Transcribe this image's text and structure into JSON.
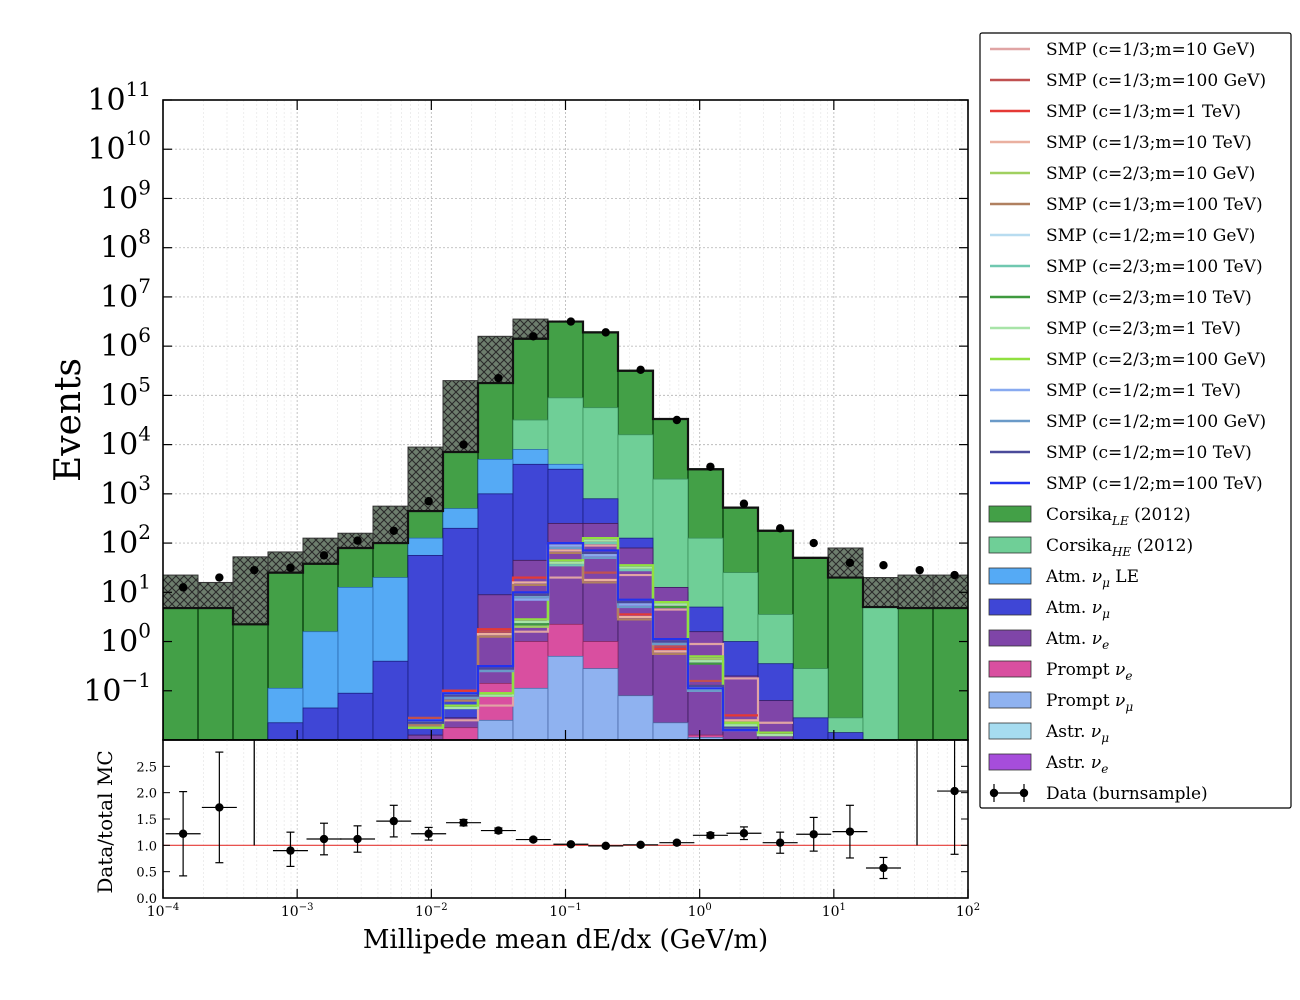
{
  "chart_data": [
    {
      "type": "area",
      "panel": "main",
      "ylabel": "Events",
      "xscale": "log",
      "yscale": "log",
      "xlim": [
        0.0001,
        100
      ],
      "ylim": [
        0.01,
        100000000000
      ],
      "grid": true,
      "legend_placement": "outside-right",
      "bin_edges_log10": [
        -4,
        -3.8,
        -3.6,
        -3.4,
        -3.2,
        -3,
        -2.8,
        -2.6,
        -2.4,
        -2.2,
        -2,
        -1.8,
        -1.6,
        -1.4,
        -1.2,
        -1,
        -0.8,
        -0.6,
        -0.4,
        -0.2,
        0,
        0.2,
        0.4,
        0.6,
        0.8,
        1,
        1.2,
        1.4,
        1.6,
        1.8,
        2
      ],
      "y_tick_labels": [
        {
          "exp": 11,
          "base": "10",
          "sign": ""
        },
        {
          "exp": 10,
          "base": "10",
          "sign": ""
        },
        {
          "exp": 9,
          "base": "10",
          "sign": ""
        },
        {
          "exp": 8,
          "base": "10",
          "sign": ""
        },
        {
          "exp": 7,
          "base": "10",
          "sign": ""
        },
        {
          "exp": 6,
          "base": "10",
          "sign": ""
        },
        {
          "exp": 5,
          "base": "10",
          "sign": ""
        },
        {
          "exp": 4,
          "base": "10",
          "sign": ""
        },
        {
          "exp": 3,
          "base": "10",
          "sign": ""
        },
        {
          "exp": 2,
          "base": "10",
          "sign": ""
        },
        {
          "exp": 1,
          "base": "10",
          "sign": ""
        },
        {
          "exp": 0,
          "base": "10",
          "sign": ""
        },
        {
          "exp": -1,
          "base": "10",
          "sign": "−1"
        }
      ],
      "stacked_series": [
        {
          "name": "Corsika",
          "sub": "LE",
          "suffix": " (2012)",
          "color": "#43a047",
          "edge": "#1b5e20",
          "log10_values": [
            0.68,
            0.68,
            0.35,
            1.4,
            1.58,
            1.9,
            2.0,
            2.65,
            3.85,
            5.25,
            6.15,
            6.5,
            6.28,
            5.5,
            4.52,
            3.5,
            2.72,
            2.25,
            1.7,
            1.3,
            0.7,
            0.68,
            0.68
          ]
        },
        {
          "name": "Corsika",
          "sub": "HE",
          "suffix": " (2012)",
          "color": "#6fcf97",
          "edge": "#3a8f5c",
          "log10_values": [
            null,
            null,
            null,
            null,
            -0.55,
            0.2,
            0.45,
            1.0,
            1.5,
            2.45,
            4.5,
            4.95,
            4.75,
            4.2,
            3.3,
            2.1,
            1.4,
            0.55,
            -0.55,
            -1.55,
            0.7,
            null,
            null
          ]
        },
        {
          "name": "Atm. ν_μ LE",
          "color": "#55aaf5",
          "edge": "#2a6ab0",
          "log10_values": [
            null,
            null,
            null,
            -0.95,
            0.2,
            1.1,
            1.3,
            2.1,
            2.7,
            3.7,
            3.9,
            3.6,
            2.2,
            0.7,
            -0.1,
            -0.8,
            -1.6,
            -1.9,
            null,
            null,
            null,
            null,
            null
          ]
        },
        {
          "name": "Atm. ν_μ",
          "color": "#3f46d6",
          "edge": "#1a1f80",
          "log10_values": [
            null,
            null,
            null,
            -1.65,
            -1.35,
            -1.05,
            -0.4,
            1.75,
            2.3,
            3.0,
            3.6,
            3.5,
            2.9,
            2.1,
            1.0,
            0.7,
            0.0,
            -0.45,
            -1.55,
            -1.85,
            null,
            null,
            null
          ]
        },
        {
          "name": "Atm. ν_e",
          "color": "#7f45a8",
          "edge": "#3a1a5a",
          "log10_values": [
            null,
            null,
            null,
            null,
            null,
            null,
            null,
            -1.9,
            -1.55,
            0.95,
            1.65,
            2.4,
            2.4,
            1.9,
            1.1,
            0.2,
            -0.7,
            -1.2,
            null,
            null,
            null,
            null,
            null
          ]
        },
        {
          "name": "Prompt ν_e",
          "color": "#d94fa0",
          "edge": "#8a2a60",
          "log10_values": [
            null,
            null,
            null,
            null,
            null,
            null,
            null,
            null,
            -1.75,
            -0.85,
            0.0,
            0.35,
            0.0,
            -1.1,
            -1.65,
            -1.9,
            null,
            null,
            null,
            null,
            null,
            null,
            null
          ]
        },
        {
          "name": "Prompt ν_μ",
          "color": "#8fb2f0",
          "edge": "#4a6aa8",
          "log10_values": [
            null,
            null,
            null,
            null,
            null,
            null,
            null,
            null,
            null,
            -1.6,
            -0.95,
            -0.3,
            -0.55,
            -1.1,
            -1.65,
            -1.95,
            null,
            null,
            null,
            null,
            null,
            null,
            null
          ]
        }
      ],
      "smp_lines": [
        {
          "name": "SMP (c=1/3;m=10 GeV)",
          "color": "#e0a4a4",
          "log10_values": [
            -1.6,
            -1.6,
            -1.3,
            0.2,
            1.3,
            1.95,
            1.35,
            0.65,
            -0.05,
            -0.75,
            -1.65,
            null,
            null
          ]
        },
        {
          "name": "SMP (c=1/3;m=100 GeV)",
          "color": "#c05050",
          "log10_values": [
            -1.55,
            -1.0,
            0.2,
            1.3,
            2.0,
            1.4,
            0.55,
            -0.1,
            -0.8,
            -1.6,
            null,
            null,
            null
          ]
        },
        {
          "name": "SMP (c=1/3;m=1 TeV)",
          "color": "#e53935",
          "log10_values": [
            -1.65,
            -1.0,
            0.25,
            1.3,
            1.9,
            1.25,
            0.55,
            -0.15,
            -0.9,
            -1.5,
            null,
            null,
            null
          ]
        },
        {
          "name": "SMP (c=1/3;m=10 TeV)",
          "color": "#eab0a0",
          "log10_values": [
            -1.65,
            -1.1,
            0.15,
            1.2,
            1.85,
            1.25,
            0.5,
            -0.2,
            -0.95,
            -1.6,
            null,
            null,
            null
          ]
        },
        {
          "name": "SMP (c=2/3;m=10 GeV)",
          "color": "#a0d060",
          "log10_values": [
            -1.75,
            -1.3,
            -1.05,
            0.3,
            1.6,
            2.0,
            1.5,
            0.8,
            -0.35,
            -1.7,
            -1.9,
            null,
            null
          ]
        },
        {
          "name": "SMP (c=1/3;m=100 TeV)",
          "color": "#b08060",
          "log10_values": [
            -1.7,
            -1.2,
            0.1,
            1.15,
            1.8,
            1.2,
            0.45,
            -0.25,
            -1.0,
            -1.65,
            null,
            null,
            null
          ]
        },
        {
          "name": "SMP (c=1/2;m=10 GeV)",
          "color": "#b8dcf0",
          "log10_values": [
            -1.6,
            -1.05,
            -0.55,
            0.9,
            1.95,
            1.75,
            0.8,
            0.0,
            -0.95,
            -1.75,
            null,
            null,
            null
          ]
        },
        {
          "name": "SMP (c=2/3;m=100 TeV)",
          "color": "#70c8b0",
          "log10_values": [
            -1.75,
            -1.35,
            -1.1,
            0.35,
            1.55,
            2.0,
            1.45,
            0.8,
            -0.4,
            -1.65,
            -1.9,
            null,
            null
          ]
        },
        {
          "name": "SMP (c=2/3;m=10 TeV)",
          "color": "#3f9a3f",
          "log10_values": [
            -1.75,
            -1.35,
            -1.1,
            0.35,
            1.6,
            2.05,
            1.5,
            0.7,
            -0.45,
            -1.7,
            -1.9,
            null,
            null
          ]
        },
        {
          "name": "SMP (c=2/3;m=1 TeV)",
          "color": "#a8e4a8",
          "log10_values": [
            -1.75,
            -1.35,
            -1.1,
            0.4,
            1.6,
            2.05,
            1.5,
            0.75,
            -0.4,
            -1.7,
            -1.9,
            null,
            null
          ]
        },
        {
          "name": "SMP (c=2/3;m=100 GeV)",
          "color": "#90e040",
          "log10_values": [
            -1.75,
            -1.3,
            -1.05,
            0.45,
            1.65,
            2.1,
            1.55,
            0.8,
            -0.3,
            -1.65,
            -1.85,
            null,
            null
          ]
        },
        {
          "name": "SMP (c=1/2;m=1 TeV)",
          "color": "#88aaf0",
          "log10_values": [
            -1.65,
            -1.1,
            -0.6,
            0.85,
            1.95,
            1.75,
            0.75,
            -0.05,
            -1.0,
            -1.8,
            null,
            null,
            null
          ]
        },
        {
          "name": "SMP (c=1/2;m=100 GeV)",
          "color": "#6a9ac8",
          "log10_values": [
            -1.65,
            -1.15,
            -0.6,
            0.9,
            1.9,
            1.7,
            0.7,
            -0.05,
            -1.0,
            -1.75,
            null,
            null,
            null
          ]
        },
        {
          "name": "SMP (c=1/2;m=10 TeV)",
          "color": "#4a4a9a",
          "log10_values": [
            -1.65,
            -1.1,
            -0.55,
            0.95,
            2.0,
            1.8,
            0.8,
            0.0,
            -0.9,
            -1.75,
            null,
            null,
            null
          ]
        },
        {
          "name": "SMP (c=1/2;m=100 TeV)",
          "color": "#2233ee",
          "log10_values": [
            -1.6,
            -1.05,
            -0.5,
            1.0,
            2.0,
            1.85,
            0.85,
            0.05,
            -0.95,
            -1.8,
            null,
            null,
            null
          ]
        }
      ],
      "smp_start_bin": 7,
      "mc_uncertainty_upper_log10": [
        1.35,
        1.2,
        1.72,
        1.82,
        2.1,
        2.2,
        2.75,
        3.95,
        5.3,
        6.2,
        6.55,
        6.33,
        5.55,
        4.57,
        3.55,
        2.8,
        2.35,
        1.82,
        1.45,
        1.9,
        1.3,
        1.35,
        1.35
      ],
      "mc_uncertainty_lower_log10": [
        0.35,
        0.35,
        0.0,
        1.2,
        1.42,
        1.75,
        1.9,
        2.55,
        3.75,
        5.15,
        6.05,
        6.4,
        6.2,
        5.45,
        4.47,
        3.45,
        2.62,
        2.12,
        1.5,
        1.15,
        0.4,
        0.35,
        0.35
      ],
      "data_points": {
        "name": "Data (burnsample)",
        "x_log10": [
          -3.85,
          -3.58,
          -3.32,
          -3.05,
          -2.8,
          -2.55,
          -2.28,
          -2.02,
          -1.76,
          -1.5,
          -1.24,
          -0.96,
          -0.7,
          -0.44,
          -0.17,
          0.08,
          0.33,
          0.6,
          0.85,
          1.12,
          1.37,
          1.64,
          1.9
        ],
        "y_log10": [
          1.1,
          1.3,
          1.45,
          1.5,
          1.75,
          2.05,
          2.25,
          2.85,
          4.0,
          5.35,
          6.2,
          6.5,
          6.28,
          5.52,
          4.5,
          3.55,
          2.8,
          2.3,
          2.0,
          1.6,
          1.55,
          1.45,
          1.35
        ]
      }
    },
    {
      "type": "scatter",
      "panel": "ratio",
      "xlabel": "Millipede mean dE/dx (GeV/m)",
      "ylabel": "Data/total MC",
      "xscale": "log",
      "xlim": [
        0.0001,
        100
      ],
      "ylim": [
        0.0,
        3.0
      ],
      "reference_line": 1.0,
      "y_tick_labels": [
        "0.0",
        "0.5",
        "1.0",
        "1.5",
        "2.0",
        "2.5"
      ],
      "x_tick_labels": [
        {
          "exp": "−4",
          "base": "10"
        },
        {
          "exp": "−3",
          "base": "10"
        },
        {
          "exp": "−2",
          "base": "10"
        },
        {
          "exp": "−1",
          "base": "10"
        },
        {
          "exp": "0",
          "base": "10"
        },
        {
          "exp": "1",
          "base": "10"
        },
        {
          "exp": "2",
          "base": "10"
        }
      ],
      "x_log10": [
        -3.85,
        -3.58,
        -3.05,
        -2.8,
        -2.55,
        -2.28,
        -2.02,
        -1.76,
        -1.5,
        -1.24,
        -0.96,
        -0.7,
        -0.44,
        -0.17,
        0.08,
        0.33,
        0.6,
        0.85,
        1.12,
        1.37,
        1.64,
        1.9
      ],
      "values": [
        1.22,
        1.72,
        0.9,
        1.12,
        1.12,
        1.46,
        1.22,
        1.43,
        1.28,
        1.11,
        1.02,
        0.99,
        1.01,
        1.05,
        1.19,
        1.23,
        1.05,
        1.21,
        1.26,
        0.57,
        null,
        2.03
      ],
      "err_low": [
        0.8,
        1.05,
        0.3,
        0.3,
        0.25,
        0.3,
        0.12,
        0.06,
        0.05,
        0.03,
        0.02,
        0.02,
        0.02,
        0.03,
        0.05,
        0.12,
        0.2,
        0.32,
        0.5,
        0.2,
        null,
        1.2
      ],
      "err_high": [
        0.8,
        1.05,
        0.35,
        0.3,
        0.25,
        0.3,
        0.12,
        0.06,
        0.05,
        0.03,
        0.02,
        0.02,
        0.02,
        0.03,
        0.05,
        0.12,
        0.2,
        0.32,
        0.5,
        0.2,
        null,
        1.2
      ],
      "vertical_bars": [
        -3.32,
        1.62
      ]
    }
  ],
  "legend": {
    "entries": [
      {
        "kind": "line",
        "label": "SMP (c=1/3;m=10 GeV)",
        "color": "#e0a4a4"
      },
      {
        "kind": "line",
        "label": "SMP (c=1/3;m=100 GeV)",
        "color": "#c05050"
      },
      {
        "kind": "line",
        "label": "SMP (c=1/3;m=1 TeV)",
        "color": "#e53935"
      },
      {
        "kind": "line",
        "label": "SMP (c=1/3;m=10 TeV)",
        "color": "#eab0a0"
      },
      {
        "kind": "line",
        "label": "SMP (c=2/3;m=10 GeV)",
        "color": "#a0d060"
      },
      {
        "kind": "line",
        "label": "SMP (c=1/3;m=100 TeV)",
        "color": "#b08060"
      },
      {
        "kind": "line",
        "label": "SMP (c=1/2;m=10 GeV)",
        "color": "#b8dcf0"
      },
      {
        "kind": "line",
        "label": "SMP (c=2/3;m=100 TeV)",
        "color": "#70c8b0"
      },
      {
        "kind": "line",
        "label": "SMP (c=2/3;m=10 TeV)",
        "color": "#3f9a3f"
      },
      {
        "kind": "line",
        "label": "SMP (c=2/3;m=1 TeV)",
        "color": "#a8e4a8"
      },
      {
        "kind": "line",
        "label": "SMP (c=2/3;m=100 GeV)",
        "color": "#90e040"
      },
      {
        "kind": "line",
        "label": "SMP (c=1/2;m=1 TeV)",
        "color": "#88aaf0"
      },
      {
        "kind": "line",
        "label": "SMP (c=1/2;m=100 GeV)",
        "color": "#6a9ac8"
      },
      {
        "kind": "line",
        "label": "SMP (c=1/2;m=10 TeV)",
        "color": "#4a4a9a"
      },
      {
        "kind": "line",
        "label": "SMP (c=1/2;m=100 TeV)",
        "color": "#2233ee"
      },
      {
        "kind": "patch",
        "label": "Corsika",
        "sub": "LE",
        "suffix": " (2012)",
        "color": "#43a047"
      },
      {
        "kind": "patch",
        "label": "Corsika",
        "sub": "HE",
        "suffix": " (2012)",
        "color": "#6fcf97"
      },
      {
        "kind": "patch",
        "label": "Atm. ",
        "nu": "μ",
        "suffix": " LE",
        "color": "#55aaf5"
      },
      {
        "kind": "patch",
        "label": "Atm. ",
        "nu": "μ",
        "suffix": "",
        "color": "#3f46d6"
      },
      {
        "kind": "patch",
        "label": "Atm. ",
        "nu": "e",
        "suffix": "",
        "color": "#7f45a8"
      },
      {
        "kind": "patch",
        "label": "Prompt ",
        "nu": "e",
        "suffix": "",
        "color": "#d94fa0"
      },
      {
        "kind": "patch",
        "label": "Prompt ",
        "nu": "μ",
        "suffix": "",
        "color": "#8fb2f0"
      },
      {
        "kind": "patch",
        "label": "Astr. ",
        "nu": "μ",
        "suffix": "",
        "color": "#a6dcf0"
      },
      {
        "kind": "patch",
        "label": "Astr. ",
        "nu": "e",
        "suffix": "",
        "color": "#a64ddb"
      },
      {
        "kind": "data",
        "label": "Data (burnsample)",
        "color": "#000000"
      }
    ]
  }
}
